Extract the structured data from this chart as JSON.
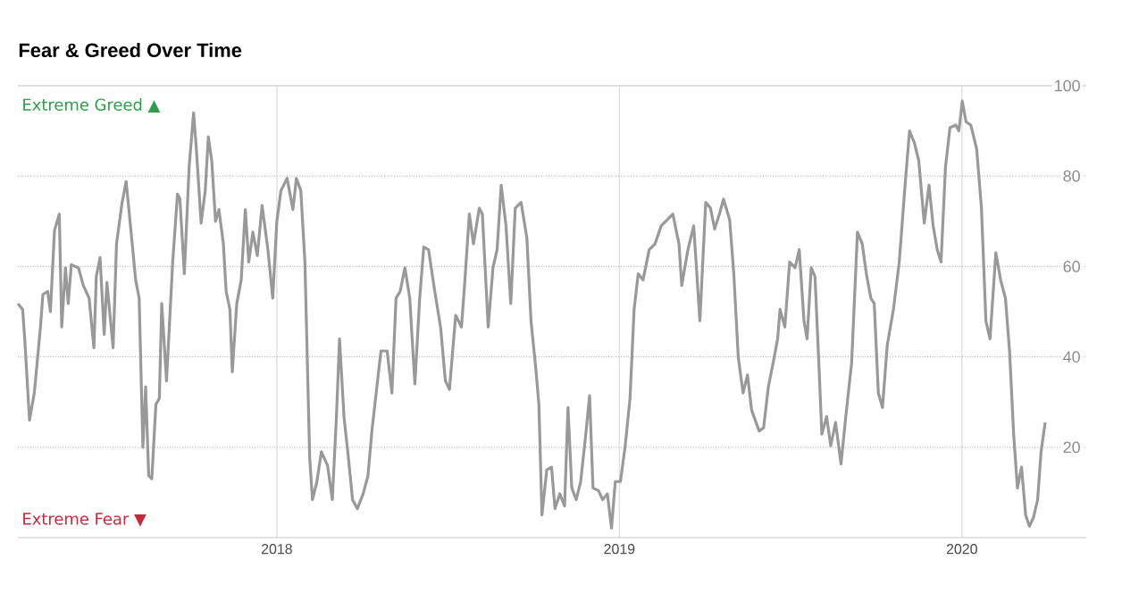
{
  "chart_data": {
    "type": "line",
    "title": "Fear & Greed Over Time",
    "annotations": [
      "Extreme Greed ▲",
      "Extreme Fear ▼"
    ],
    "x": [
      2017.244,
      2017.258,
      2017.264,
      2017.278,
      2017.292,
      2017.31,
      2017.317,
      2017.331,
      2017.339,
      2017.351,
      2017.365,
      2017.372,
      2017.383,
      2017.391,
      2017.4,
      2017.421,
      2017.435,
      2017.452,
      2017.466,
      2017.473,
      2017.484,
      2017.496,
      2017.504,
      2017.522,
      2017.532,
      2017.548,
      2017.56,
      2017.574,
      2017.588,
      2017.598,
      2017.609,
      2017.617,
      2017.626,
      2017.635,
      2017.647,
      2017.657,
      2017.664,
      2017.678,
      2017.696,
      2017.71,
      2017.717,
      2017.73,
      2017.744,
      2017.757,
      2017.765,
      2017.779,
      2017.791,
      2017.8,
      2017.81,
      2017.821,
      2017.831,
      2017.844,
      2017.852,
      2017.863,
      2017.87,
      2017.883,
      2017.896,
      2017.908,
      2017.918,
      2017.93,
      2017.943,
      2017.957,
      2017.974,
      2017.988,
      2018.0,
      2018.012,
      2018.03,
      2018.047,
      2018.057,
      2018.07,
      2018.082,
      2018.096,
      2018.104,
      2018.117,
      2018.13,
      2018.148,
      2018.162,
      2018.174,
      2018.183,
      2018.196,
      2018.209,
      2018.221,
      2018.235,
      2018.252,
      2018.266,
      2018.278,
      2018.29,
      2018.304,
      2018.322,
      2018.336,
      2018.348,
      2018.36,
      2018.374,
      2018.388,
      2018.403,
      2018.417,
      2018.429,
      2018.443,
      2018.461,
      2018.478,
      2018.492,
      2018.504,
      2018.522,
      2018.539,
      2018.548,
      2018.562,
      2018.574,
      2018.591,
      2018.6,
      2018.617,
      2018.631,
      2018.643,
      2018.655,
      2018.669,
      2018.683,
      2018.696,
      2018.713,
      2018.73,
      2018.742,
      2018.756,
      2018.765,
      2018.774,
      2018.788,
      2018.802,
      2018.812,
      2018.826,
      2018.84,
      2018.85,
      2018.861,
      2018.874,
      2018.887,
      2018.902,
      2018.913,
      2018.923,
      2018.939,
      2018.951,
      2018.965,
      2018.977,
      2018.988,
      2019.003,
      2019.017,
      2019.031,
      2019.043,
      2019.055,
      2019.069,
      2019.087,
      2019.104,
      2019.122,
      2019.139,
      2019.156,
      2019.174,
      2019.182,
      2019.2,
      2019.217,
      2019.235,
      2019.252,
      2019.266,
      2019.278,
      2019.292,
      2019.304,
      2019.322,
      2019.334,
      2019.347,
      2019.361,
      2019.374,
      2019.386,
      2019.408,
      2019.421,
      2019.435,
      2019.449,
      2019.462,
      2019.469,
      2019.483,
      2019.497,
      2019.513,
      2019.525,
      2019.539,
      2019.548,
      2019.56,
      2019.571,
      2019.583,
      2019.591,
      2019.605,
      2019.617,
      2019.631,
      2019.647,
      2019.661,
      2019.678,
      2019.695,
      2019.709,
      2019.721,
      2019.734,
      2019.744,
      2019.756,
      2019.768,
      2019.782,
      2019.8,
      2019.817,
      2019.834,
      2019.847,
      2019.861,
      2019.874,
      2019.89,
      2019.904,
      2019.916,
      2019.928,
      2019.939,
      2019.952,
      2019.965,
      2019.982,
      2019.991,
      2020.001,
      2020.012,
      2020.026,
      2020.043,
      2020.057,
      2020.07,
      2020.082,
      2020.099,
      2020.113,
      2020.127,
      2020.139,
      2020.151,
      2020.162,
      2020.174,
      2020.186,
      2020.197,
      2020.209,
      2020.221,
      2020.231,
      2020.243
    ],
    "series": [
      {
        "color": "#999999",
        "values": [
          51.8,
          50.5,
          44,
          26,
          32,
          46.6,
          53.8,
          54.5,
          50,
          68,
          71.6,
          46.6,
          59.7,
          51.8,
          60.4,
          59.7,
          55.8,
          53,
          42,
          57.8,
          62,
          45,
          56.5,
          42,
          65,
          74,
          78.8,
          68,
          57,
          53,
          20,
          33.4,
          13.7,
          13,
          29.5,
          30.8,
          51.8,
          34.7,
          61,
          76,
          75,
          58.4,
          82,
          94,
          86,
          69.6,
          76.8,
          88.7,
          83.4,
          70,
          72.6,
          65,
          54.5,
          50.5,
          36.7,
          51.8,
          57,
          72.6,
          61,
          67.6,
          62.4,
          73.5,
          63.7,
          53,
          70,
          76.8,
          79.5,
          72.6,
          79.5,
          76.8,
          61,
          17.6,
          8.4,
          12.4,
          19,
          16,
          8.4,
          26.8,
          44,
          26.8,
          17.6,
          8.4,
          6.4,
          9.7,
          13.7,
          24,
          32,
          41.3,
          41.3,
          32,
          53,
          54.5,
          59.7,
          53,
          34,
          53,
          64.3,
          63.7,
          54.5,
          46.6,
          34.7,
          32.8,
          49.2,
          46.6,
          55.8,
          71.6,
          65,
          72.9,
          71.6,
          46.6,
          59.7,
          63.7,
          78,
          69,
          51.8,
          72.9,
          74.2,
          66.3,
          48,
          37.4,
          29.5,
          5,
          15,
          15.6,
          6.4,
          9.7,
          7,
          28.8,
          11,
          8.4,
          12.4,
          22.9,
          31.4,
          11,
          10.4,
          8.4,
          9.7,
          2.1,
          12.4,
          12.4,
          20.3,
          30.8,
          50.5,
          58.4,
          57,
          63.7,
          65,
          69,
          70.3,
          71.6,
          65,
          55.8,
          63.7,
          69,
          48,
          74.2,
          72.9,
          68.3,
          71.6,
          74.9,
          70.3,
          58.4,
          40,
          32,
          36,
          28.2,
          23.6,
          24.3,
          33.4,
          38.7,
          44,
          50.5,
          46.6,
          61,
          59.7,
          63.7,
          47.9,
          44,
          59.7,
          57.8,
          37.4,
          22.9,
          26.8,
          20.3,
          25.5,
          16.3,
          26.8,
          38.7,
          67.6,
          65,
          58.4,
          53,
          51.8,
          32,
          28.8,
          42.6,
          50.5,
          61,
          78,
          90,
          87.4,
          83.4,
          69.6,
          78,
          69,
          63.7,
          61,
          82,
          90.7,
          91.3,
          90,
          96.6,
          92,
          91.3,
          86,
          72.9,
          47.9,
          44,
          63,
          57,
          53,
          41.3,
          22.9,
          11,
          15.6,
          5,
          2.5,
          4.5,
          8.4,
          19,
          25.5
        ]
      }
    ],
    "xlim": [
      2017.244,
      2020.363
    ],
    "ylim": [
      0,
      100
    ],
    "xticks": [
      2018,
      2019,
      2020
    ],
    "yticks": [
      20,
      40,
      60,
      80,
      100
    ],
    "grid": true
  }
}
